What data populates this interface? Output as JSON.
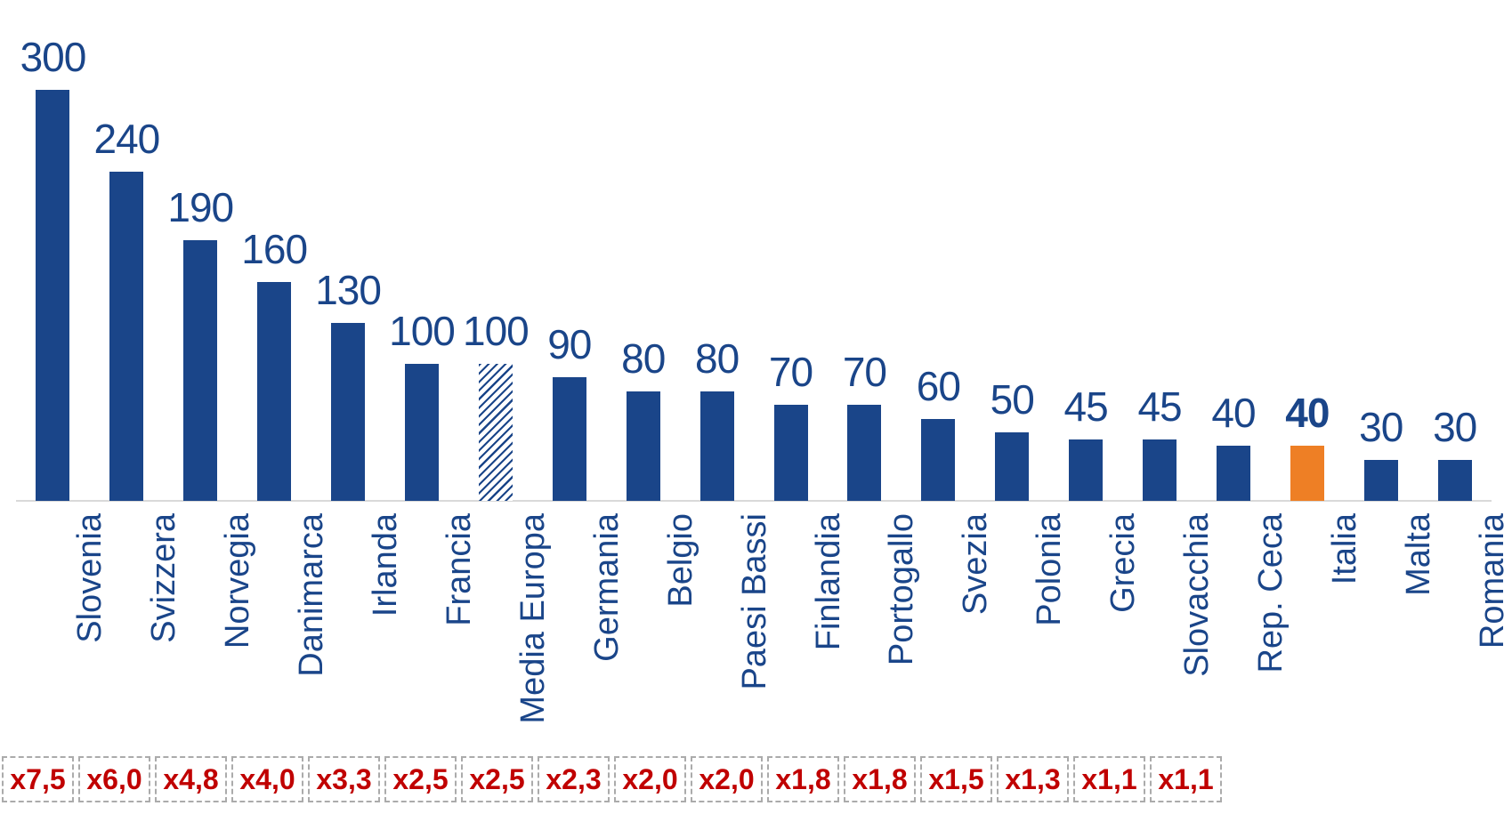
{
  "chart_data": {
    "type": "bar",
    "title": "",
    "xlabel": "",
    "ylabel": "",
    "ylim": [
      0,
      310
    ],
    "y_axis_visible": false,
    "grid": false,
    "legend_position": "none",
    "data_labels_above_bars": true,
    "categories": [
      "Slovenia",
      "Svizzera",
      "Norvegia",
      "Danimarca",
      "Irlanda",
      "Francia",
      "Media Europa",
      "Germania",
      "Belgio",
      "Paesi Bassi",
      "Finlandia",
      "Portogallo",
      "Svezia",
      "Polonia",
      "Grecia",
      "Slovacchia",
      "Rep. Ceca",
      "Italia",
      "Malta",
      "Romania"
    ],
    "values": [
      300,
      240,
      190,
      160,
      130,
      100,
      100,
      90,
      80,
      80,
      70,
      70,
      60,
      50,
      45,
      45,
      40,
      40,
      30,
      30
    ],
    "value_labels": [
      "300",
      "240",
      "190",
      "160",
      "130",
      "100",
      "100",
      "90",
      "80",
      "80",
      "70",
      "70",
      "60",
      "50",
      "45",
      "45",
      "40",
      "40",
      "30",
      "30"
    ],
    "bar_styles": [
      "solid",
      "solid",
      "solid",
      "solid",
      "solid",
      "solid",
      "hatched",
      "solid",
      "solid",
      "solid",
      "solid",
      "solid",
      "solid",
      "solid",
      "solid",
      "solid",
      "solid",
      "highlight",
      "solid",
      "solid"
    ],
    "multipliers": [
      "x7,5",
      "x6,0",
      "x4,8",
      "x4,0",
      "x3,3",
      "x2,5",
      "x2,5",
      "x2,3",
      "x2,0",
      "x2,0",
      "x1,8",
      "x1,8",
      "x1,5",
      "x1,3",
      "x1,1",
      "x1,1"
    ]
  },
  "colors": {
    "bar": "#1a4589",
    "highlight_bar": "#ee7f25",
    "label_text": "#1a4589",
    "multiplier_text": "#c00000",
    "multiplier_border": "#ababab",
    "axis_line": "#d9d9d9"
  }
}
